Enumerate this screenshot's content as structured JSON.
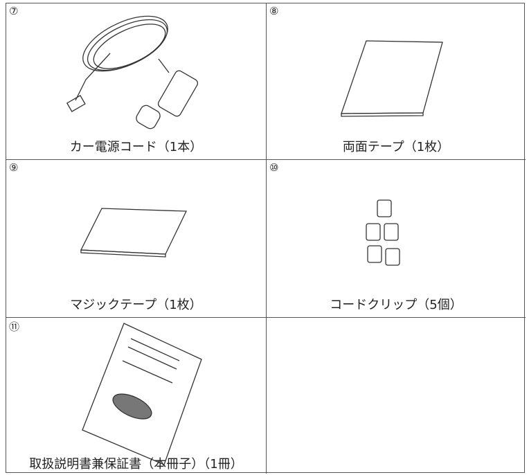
{
  "items": [
    {
      "number": "⑦",
      "caption": "カー電源コード（1本）"
    },
    {
      "number": "⑧",
      "caption": "両面テープ（1枚）"
    },
    {
      "number": "⑨",
      "caption": "マジックテープ（1枚）"
    },
    {
      "number": "⑩",
      "caption": "コードクリップ（5個）"
    },
    {
      "number": "⑪",
      "caption": "取扱説明書兼保証書（本冊子）（1冊）"
    }
  ]
}
